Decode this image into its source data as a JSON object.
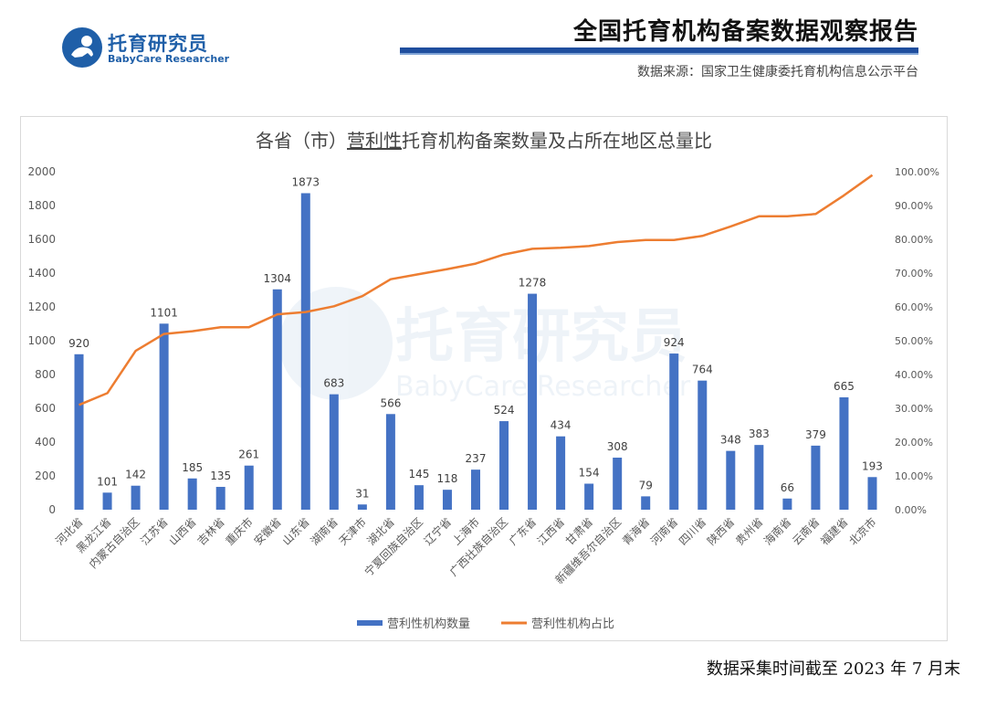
{
  "header": {
    "logo_name": "托育研究员",
    "logo_sub": "BabyCare Researcher",
    "report_title": "全国托育机构备案数据观察报告",
    "source": "数据来源：国家卫生健康委托育机构信息公示平台"
  },
  "footer": {
    "date_note": "数据采集时间截至 2023 年 7 月末"
  },
  "watermark": {
    "text": "托育研究员",
    "sub": "BabyCare Researcher"
  },
  "colors": {
    "bar": "#4472c4",
    "line": "#ed7d31",
    "brand": "#1f5fa8",
    "bar_dark": "#1f4e9e"
  },
  "chart_data": {
    "type": "bar",
    "title_prefix": "各省（市）",
    "title_emph": "营利性",
    "title_suffix": "托育机构备案数量及占所在地区总量比",
    "categories": [
      "河北省",
      "黑龙江省",
      "内蒙古自治区",
      "江苏省",
      "山西省",
      "吉林省",
      "重庆市",
      "安徽省",
      "山东省",
      "湖南省",
      "天津市",
      "湖北省",
      "宁夏回族自治区",
      "辽宁省",
      "上海市",
      "广西壮族自治区",
      "广东省",
      "江西省",
      "甘肃省",
      "新疆维吾尔自治区",
      "青海省",
      "河南省",
      "四川省",
      "陕西省",
      "贵州省",
      "海南省",
      "云南省",
      "福建省",
      "北京市"
    ],
    "series": [
      {
        "name": "营利性机构数量",
        "type": "bar",
        "axis": "left",
        "values": [
          920,
          101,
          142,
          1101,
          185,
          135,
          261,
          1304,
          1873,
          683,
          31,
          566,
          145,
          118,
          237,
          524,
          1278,
          434,
          154,
          308,
          79,
          924,
          764,
          348,
          383,
          66,
          379,
          665,
          193
        ]
      },
      {
        "name": "营利性机构占比",
        "type": "line",
        "axis": "right",
        "values": [
          0.31,
          0.345,
          0.47,
          0.52,
          0.528,
          0.54,
          0.54,
          0.578,
          0.585,
          0.602,
          0.632,
          0.682,
          0.697,
          0.712,
          0.728,
          0.755,
          0.772,
          0.775,
          0.78,
          0.792,
          0.798,
          0.798,
          0.81,
          0.838,
          0.868,
          0.868,
          0.875,
          0.93,
          0.99
        ]
      }
    ],
    "ylim_left": [
      0,
      2000
    ],
    "yticks_left": [
      "0",
      "200",
      "400",
      "600",
      "800",
      "1000",
      "1200",
      "1400",
      "1600",
      "1800",
      "2000"
    ],
    "ylim_right": [
      0,
      1
    ],
    "yticks_right": [
      "0.00%",
      "10.00%",
      "20.00%",
      "30.00%",
      "40.00%",
      "50.00%",
      "60.00%",
      "70.00%",
      "80.00%",
      "90.00%",
      "100.00%"
    ],
    "grid": false,
    "legend_position": "bottom"
  }
}
